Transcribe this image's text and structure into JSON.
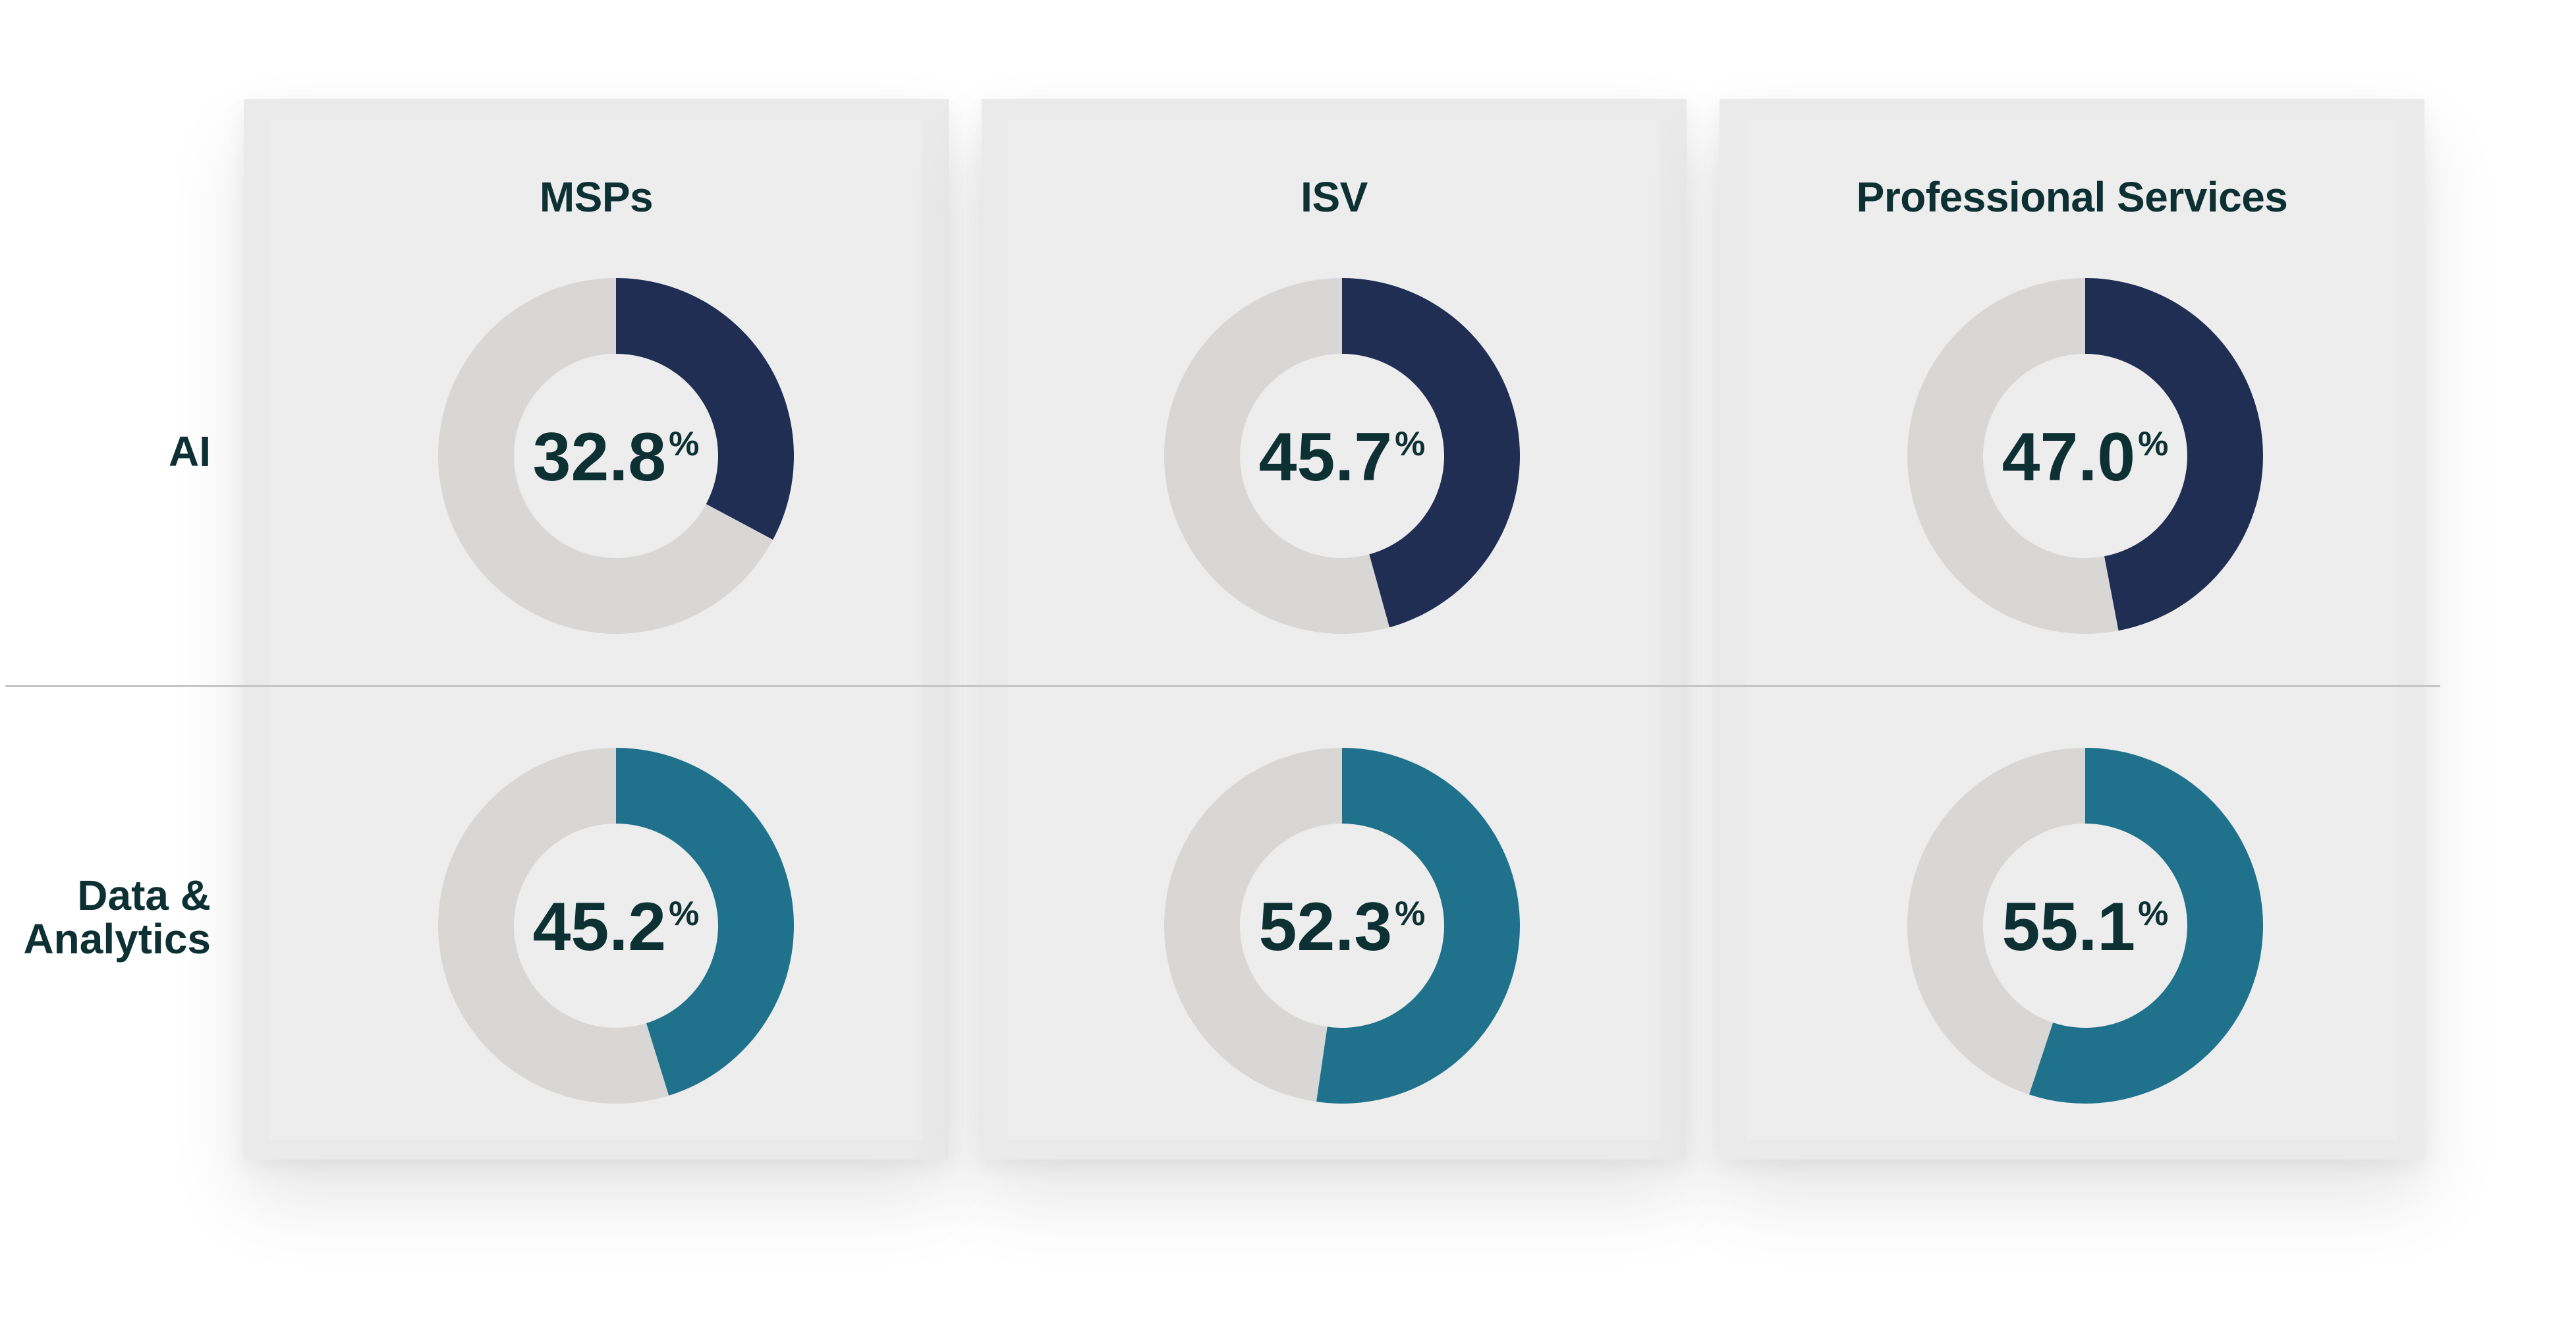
{
  "columns": [
    "MSPs",
    "ISV",
    "Professional Services"
  ],
  "rows": [
    "AI",
    "Data & Analytics"
  ],
  "row_labels_display": {
    "ai": "AI",
    "data_line1": "Data &",
    "data_line2": "Analytics"
  },
  "percent_symbol": "%",
  "colors": {
    "ai": "#1f2e52",
    "data_analytics": "#20728c",
    "remainder": "#d8d7d6",
    "text": "#0d3033"
  },
  "chart_data": {
    "type": "donut-grid",
    "columns": [
      "MSPs",
      "ISV",
      "Professional Services"
    ],
    "series": [
      {
        "name": "AI",
        "values": [
          32.8,
          45.7,
          47.0
        ],
        "labels": [
          "32.8",
          "45.7",
          "47.0"
        ]
      },
      {
        "name": "Data & Analytics",
        "values": [
          45.2,
          52.3,
          55.1
        ],
        "labels": [
          "45.2",
          "52.3",
          "55.1"
        ]
      }
    ],
    "max": 100
  }
}
